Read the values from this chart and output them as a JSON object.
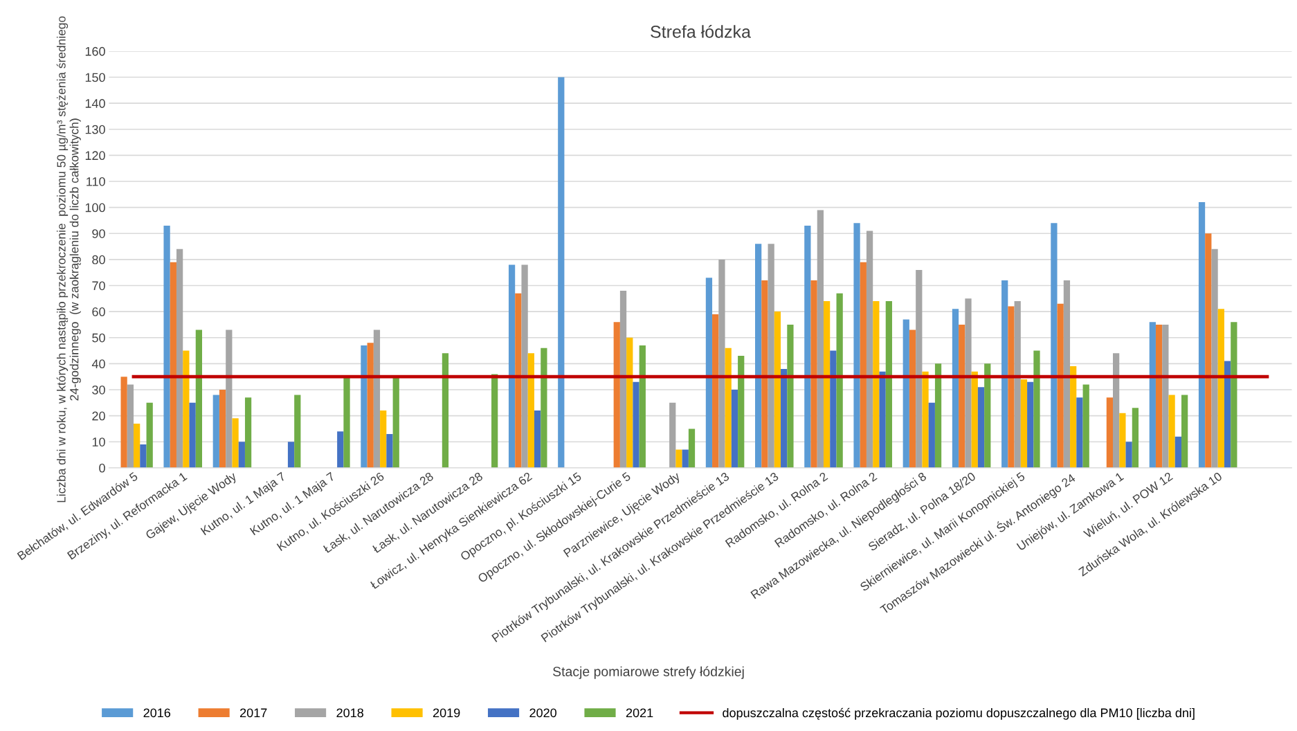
{
  "chart_data": {
    "type": "bar",
    "title": "Strefa łódzka",
    "xlabel": "Stacje pomiarowe strefy łódzkiej",
    "ylabel": "Liczba dni w roku, w których nastąpiło przekroczenie  poziomu 50 µg/m³ stężenia średniego 24-godzinnego  (w zaokrągleniu do liczb całkowitych)",
    "categories": [
      "Bełchatów, ul. Edwardów 5",
      "Brzeziny, ul. Reformacka 1",
      "Gajew, Ujęcie Wody",
      "Kutno, ul. 1 Maja 7",
      "Kutno, ul. 1 Maja 7",
      "Kutno, ul. Kościuszki 26",
      "Łask, ul. Narutowicza 28",
      "Łask, ul. Narutowicza 28",
      "Łowicz, ul. Henryka Sienkiewicza 62",
      "Opoczno, pl. Kościuszki 15",
      "Opoczno, ul. Skłodowskiej-Curie 5",
      "Parzniewice, Ujęcie Wody",
      "Piotrków Trybunalski, ul. Krakowskie Przedmieście 13",
      "Piotrków Trybunalski, ul. Krakowskie Przedmieście 13",
      "Radomsko, ul. Rolna 2",
      "Radomsko, ul. Rolna 2",
      "Rawa Mazowiecka, ul. Niepodległości 8",
      "Sieradz, ul. Polna 18/20",
      "Skierniewice, ul. Marii Konopnickiej 5",
      "Tomaszów Mazowiecki ul. Św. Antoniego 24",
      "Uniejów, ul. Zamkowa 1",
      "Wieluń, ul. POW 12",
      "Zduńska Wola, ul. Królewska 10",
      null
    ],
    "series": [
      {
        "name": "2016",
        "color": "#5b9bd5",
        "values": [
          null,
          93,
          28,
          null,
          null,
          47,
          null,
          null,
          78,
          150,
          null,
          null,
          73,
          86,
          93,
          94,
          57,
          61,
          72,
          94,
          null,
          56,
          102,
          null
        ]
      },
      {
        "name": "2017",
        "color": "#ed7d31",
        "values": [
          35,
          79,
          30,
          null,
          null,
          48,
          null,
          null,
          67,
          null,
          56,
          null,
          59,
          72,
          72,
          79,
          53,
          55,
          62,
          63,
          27,
          55,
          90,
          null
        ]
      },
      {
        "name": "2018",
        "color": "#a5a5a5",
        "values": [
          32,
          84,
          53,
          null,
          null,
          53,
          null,
          null,
          78,
          null,
          68,
          25,
          80,
          86,
          99,
          91,
          76,
          65,
          64,
          72,
          44,
          55,
          84,
          null
        ]
      },
      {
        "name": "2019",
        "color": "#ffc000",
        "values": [
          17,
          45,
          19,
          null,
          null,
          22,
          null,
          null,
          44,
          null,
          50,
          7,
          46,
          60,
          64,
          64,
          37,
          37,
          34,
          39,
          21,
          28,
          61,
          null
        ]
      },
      {
        "name": "2020",
        "color": "#4472c4",
        "values": [
          9,
          25,
          10,
          10,
          14,
          13,
          null,
          null,
          22,
          null,
          33,
          7,
          30,
          38,
          45,
          37,
          25,
          31,
          33,
          27,
          10,
          12,
          41,
          null
        ]
      },
      {
        "name": "2021",
        "color": "#70ad47",
        "values": [
          25,
          53,
          27,
          28,
          35,
          35,
          44,
          36,
          46,
          null,
          47,
          15,
          43,
          55,
          67,
          64,
          40,
          40,
          45,
          32,
          23,
          28,
          56,
          null
        ]
      },
      {
        "name": "dopuszczalna częstość przekraczania poziomu dopuszczalnego dla PM10 [liczba dni]",
        "type": "line",
        "color": "#c00000",
        "values": [
          35,
          35,
          35,
          35,
          35,
          35,
          35,
          35,
          35,
          35,
          35,
          35,
          35,
          35,
          35,
          35,
          35,
          35,
          35,
          35,
          35,
          35,
          35,
          35
        ]
      }
    ],
    "ylim": [
      0,
      160
    ],
    "yticks": [
      0,
      10,
      20,
      30,
      40,
      50,
      60,
      70,
      80,
      90,
      100,
      110,
      120,
      130,
      140,
      150,
      160
    ],
    "grid": "y",
    "legend": "bottom",
    "marker": "none"
  }
}
